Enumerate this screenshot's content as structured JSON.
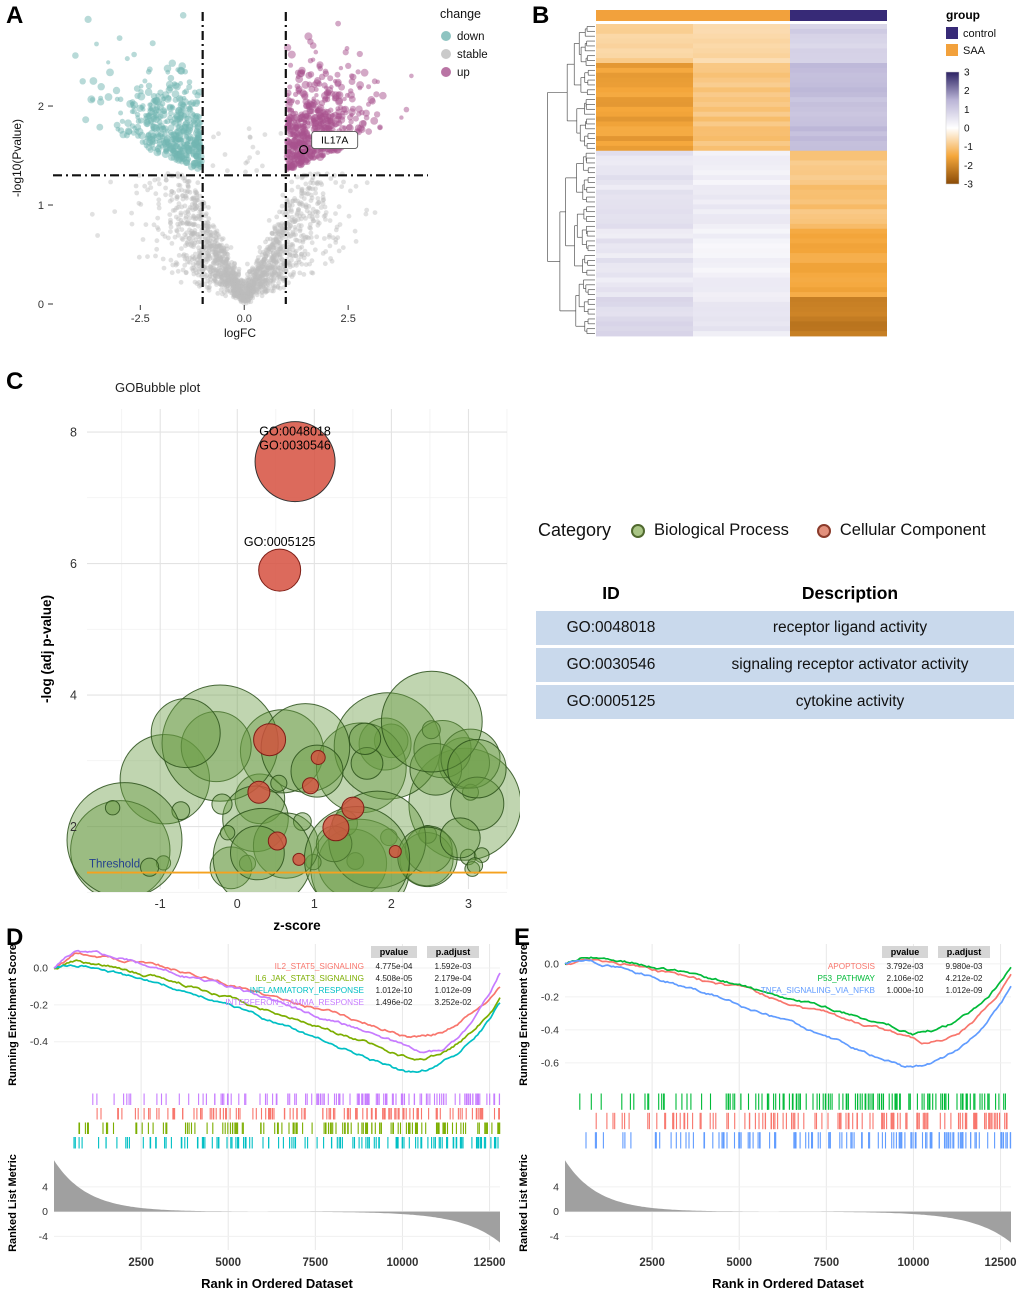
{
  "letters": {
    "a": "A",
    "b": "B",
    "c": "C",
    "d": "D",
    "e": "E"
  },
  "category_legend": {
    "title": "Category",
    "items": [
      {
        "label": "Biological Process",
        "color": "#a9c585",
        "ring": "#50692f"
      },
      {
        "label": "Cellular Component",
        "color": "#e2907c",
        "ring": "#8a3b2b"
      }
    ]
  },
  "go_table": {
    "headers": [
      "ID",
      "Description"
    ],
    "row_background": "#c9d9ec",
    "rows": [
      {
        "id": "GO:0048018",
        "description": "receptor ligand activity"
      },
      {
        "id": "GO:0030546",
        "description": "signaling receptor activator activity"
      },
      {
        "id": "GO:0005125",
        "description": "cytokine activity"
      }
    ]
  },
  "chart_data": [
    {
      "panel": "A",
      "type": "scatter",
      "name": "volcano-plot",
      "xlabel": "logFC",
      "ylabel": "-log10(Pvalue)",
      "xlim": [
        -4.6,
        4.3
      ],
      "ylim": [
        0,
        2.95
      ],
      "xticks": [
        -2.5,
        0.0,
        2.5
      ],
      "yticks": [
        0,
        1,
        2
      ],
      "legend_title": "change",
      "groups": [
        {
          "label": "down",
          "color": "#72b5b2"
        },
        {
          "label": "stable",
          "color": "#bdbdbd"
        },
        {
          "label": "up",
          "color": "#a8518d"
        }
      ],
      "logfc_cutoffs": [
        -1,
        1
      ],
      "pvalue_cutoff_line": 1.3,
      "annotated_gene": {
        "label": "IL17A",
        "x": 1.43,
        "y": 1.56
      }
    },
    {
      "panel": "B",
      "type": "heatmap",
      "legend_title": "group",
      "column_groups": [
        "SAA",
        "SAA",
        "control"
      ],
      "group_labels": [
        "control",
        "SAA"
      ],
      "group_colors": {
        "control": "#372a77",
        "SAA": "#f2a13c"
      },
      "colorbar_ticks": [
        3,
        2,
        1,
        0,
        -1,
        -2,
        -3
      ],
      "scale_colors": {
        "positive_max": "#2c2263",
        "zero": "#ffffff",
        "negative_max": "#8a4b07"
      },
      "row_blocks": [
        {
          "n_rows": 8,
          "values": [
            -0.8,
            -0.6,
            0.9
          ]
        },
        {
          "n_rows": 18,
          "values": [
            -1.6,
            -1.0,
            1.3
          ]
        },
        {
          "n_rows": 16,
          "values": [
            0.55,
            0.35,
            -1.0
          ]
        },
        {
          "n_rows": 14,
          "values": [
            0.5,
            0.3,
            -1.5
          ]
        },
        {
          "n_rows": 8,
          "values": [
            0.7,
            0.45,
            -2.2
          ]
        }
      ]
    },
    {
      "panel": "C",
      "type": "scatter",
      "name": "GOBubble",
      "title": "GOBubble plot",
      "xlabel": "z-score",
      "ylabel": "-log (adj p-value)",
      "xlim": [
        -1.95,
        3.5
      ],
      "ylim": [
        1.05,
        8.35
      ],
      "xticks": [
        -1,
        0,
        1,
        2,
        3
      ],
      "yticks": [
        2,
        4,
        6,
        8
      ],
      "threshold": {
        "value": 1.3,
        "label": "Threshold",
        "line_color": "#f5a21f",
        "label_color": "#24418e"
      },
      "category_colors": {
        "Biological Process": "#6f9e3c",
        "Cellular Component": "#d6503f"
      },
      "labeled_bubbles": [
        {
          "id": "GO:0048018",
          "x": 0.75,
          "y": 7.55,
          "category": "Cellular Component"
        },
        {
          "id": "GO:0030546",
          "x": 0.75,
          "y": 7.55,
          "category": "Cellular Component"
        },
        {
          "id": "GO:0005125",
          "x": 0.55,
          "y": 5.9,
          "category": "Cellular Component"
        }
      ]
    },
    {
      "panel": "D",
      "type": "line",
      "name": "GSEA",
      "ylabel_top": "Running Enrichment Score",
      "ylabel_bottom": "Ranked List Metric",
      "xlabel": "Rank in Ordered Dataset",
      "x_max": 12800,
      "xticks": [
        2500,
        5000,
        7500,
        10000,
        12500
      ],
      "es_yticks": [
        0.0,
        -0.2,
        -0.4
      ],
      "metric_yticks": [
        4,
        0,
        -4
      ],
      "legend_headers": [
        "pvalue",
        "p.adjust"
      ],
      "rug_row_order": [
        3,
        0,
        1,
        2
      ],
      "series": [
        {
          "name": "IL2_STAT5_SIGNALING",
          "color": "#F8766D",
          "pvalue": "4.775e-04",
          "p_adjust": "1.592e-03",
          "es_min": -0.37
        },
        {
          "name": "IL6_JAK_STAT3_SIGNALING",
          "color": "#7CAE00",
          "pvalue": "4.508e-05",
          "p_adjust": "2.179e-04",
          "es_min": -0.49
        },
        {
          "name": "INFLAMMATORY_RESPONSE",
          "color": "#00BFC4",
          "pvalue": "1.012e-10",
          "p_adjust": "1.012e-09",
          "es_min": -0.57
        },
        {
          "name": "INTERFERON_GAMMA_RESPONSE",
          "color": "#C77CFF",
          "pvalue": "1.496e-02",
          "p_adjust": "3.252e-02",
          "es_min": -0.46
        }
      ]
    },
    {
      "panel": "E",
      "type": "line",
      "name": "GSEA",
      "ylabel_top": "Running Enrichment Score",
      "ylabel_bottom": "Ranked List Metric",
      "xlabel": "Rank in Ordered Dataset",
      "x_max": 12800,
      "xticks": [
        2500,
        5000,
        7500,
        10000,
        12500
      ],
      "es_yticks": [
        0.0,
        -0.2,
        -0.4,
        -0.6
      ],
      "metric_yticks": [
        4,
        0,
        -4
      ],
      "legend_headers": [
        "pvalue",
        "p.adjust"
      ],
      "rug_row_order": [
        1,
        0,
        2
      ],
      "series": [
        {
          "name": "APOPTOSIS",
          "color": "#F8766D",
          "pvalue": "3.792e-03",
          "p_adjust": "9.980e-03",
          "es_min": -0.47
        },
        {
          "name": "P53_PATHWAY",
          "color": "#00BA38",
          "pvalue": "2.106e-02",
          "p_adjust": "4.212e-02",
          "es_min": -0.42
        },
        {
          "name": "TNFA_SIGNALING_VIA_NFKB",
          "color": "#619CFF",
          "pvalue": "1.000e-10",
          "p_adjust": "1.012e-09",
          "es_min": -0.63
        }
      ]
    }
  ]
}
